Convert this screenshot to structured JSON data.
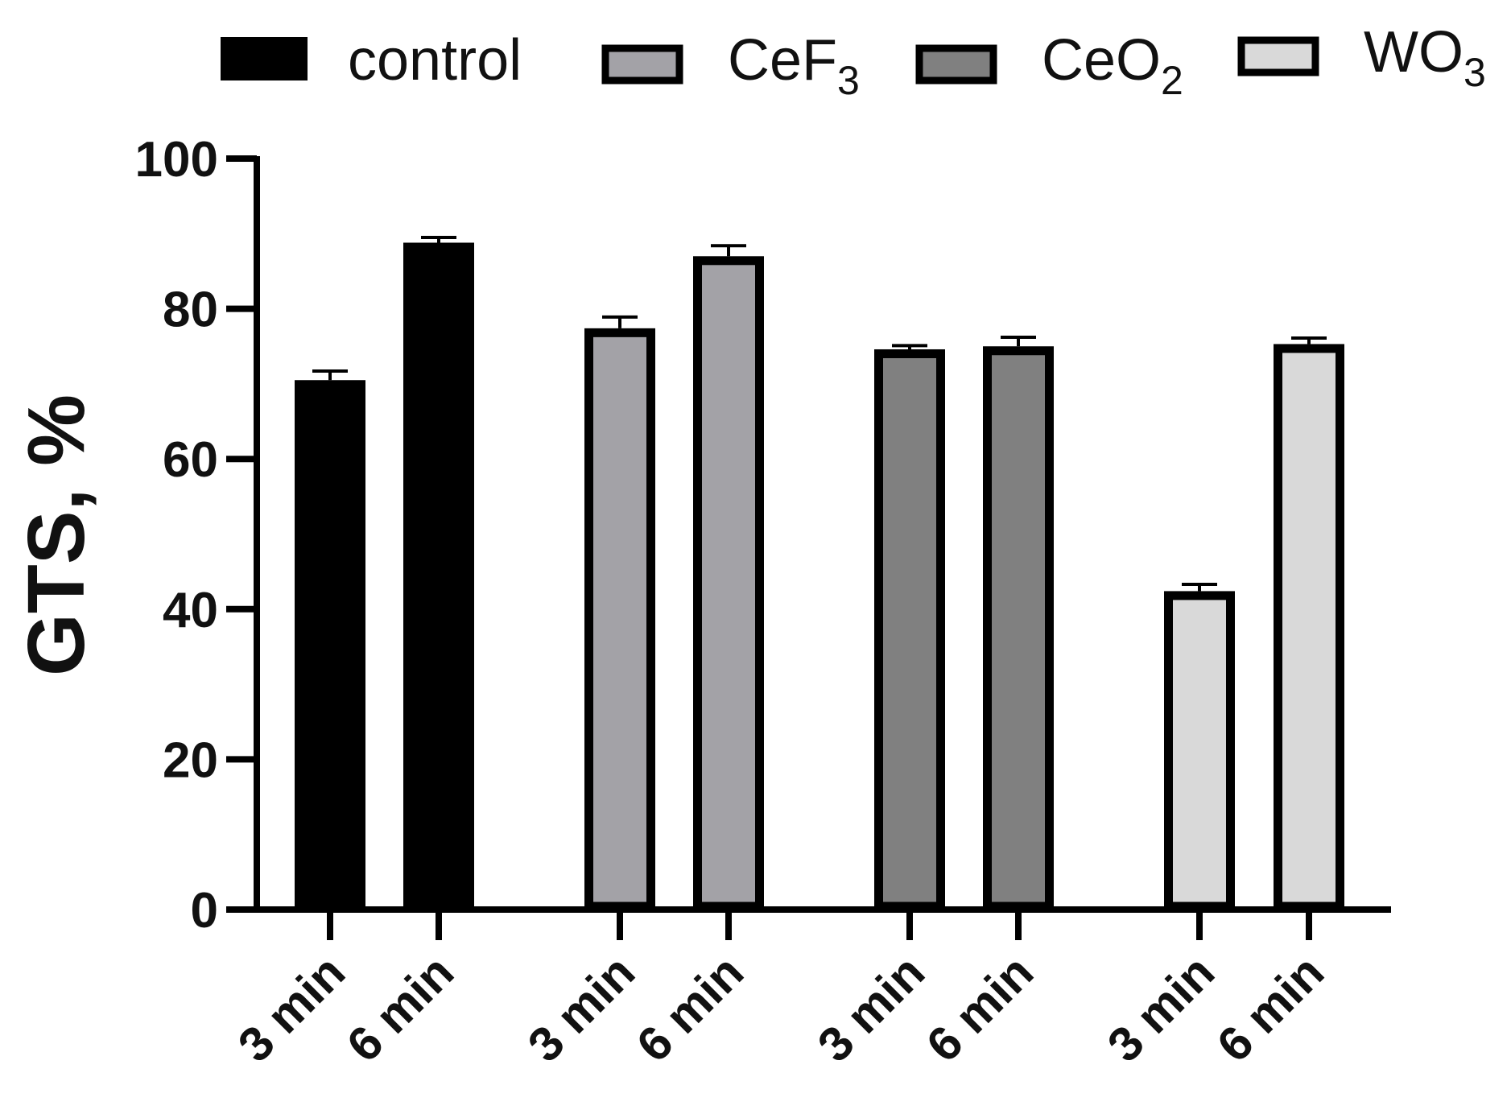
{
  "chart_data": {
    "type": "bar",
    "title": "",
    "xlabel": "",
    "ylabel": "GTS, %",
    "ylim": [
      0,
      100
    ],
    "yticks": [
      "0",
      "20",
      "40",
      "60",
      "80",
      "100"
    ],
    "grid": false,
    "legend_position": "top",
    "categories": [
      "3 min",
      "6 min"
    ],
    "series": [
      {
        "name": "control",
        "label_main": "control",
        "label_sub": "",
        "fill": "#000000",
        "stroke": "#000000",
        "values": [
          70.5,
          88.8
        ],
        "errors": [
          1.2,
          0.7
        ]
      },
      {
        "name": "CeF3",
        "label_main": "CeF",
        "label_sub": "3",
        "fill": "#a3a2a7",
        "stroke": "#000000",
        "values": [
          77.4,
          87.0
        ],
        "errors": [
          1.5,
          1.4
        ]
      },
      {
        "name": "CeO2",
        "label_main": "CeO",
        "label_sub": "2",
        "fill": "#808080",
        "stroke": "#000000",
        "values": [
          74.6,
          75.0
        ],
        "errors": [
          0.5,
          1.2
        ]
      },
      {
        "name": "WO3",
        "label_main": "WO",
        "label_sub": "3",
        "fill": "#d9d9d9",
        "stroke": "#000000",
        "values": [
          42.4,
          75.3
        ],
        "errors": [
          0.9,
          0.8
        ]
      }
    ]
  }
}
